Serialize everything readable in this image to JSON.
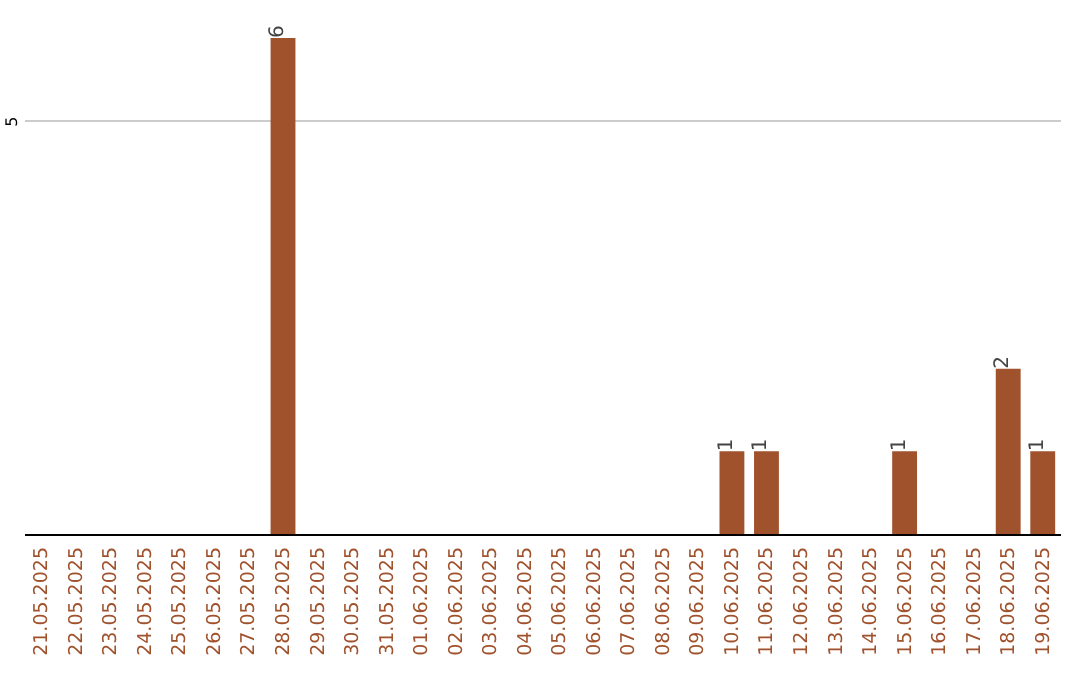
{
  "chart_data": {
    "type": "bar",
    "categories": [
      "21.05.2025",
      "22.05.2025",
      "23.05.2025",
      "24.05.2025",
      "25.05.2025",
      "26.05.2025",
      "27.05.2025",
      "28.05.2025",
      "29.05.2025",
      "30.05.2025",
      "31.05.2025",
      "01.06.2025",
      "02.06.2025",
      "03.06.2025",
      "04.06.2025",
      "05.06.2025",
      "06.06.2025",
      "07.06.2025",
      "08.06.2025",
      "09.06.2025",
      "10.06.2025",
      "11.06.2025",
      "12.06.2025",
      "13.06.2025",
      "14.06.2025",
      "15.06.2025",
      "16.06.2025",
      "17.06.2025",
      "18.06.2025",
      "19.06.2025"
    ],
    "values": [
      0,
      0,
      0,
      0,
      0,
      0,
      0,
      6,
      0,
      0,
      0,
      0,
      0,
      0,
      0,
      0,
      0,
      0,
      0,
      0,
      1,
      1,
      0,
      0,
      0,
      1,
      0,
      0,
      2,
      1
    ],
    "value_labels": [
      null,
      null,
      null,
      null,
      null,
      null,
      null,
      "6",
      null,
      null,
      null,
      null,
      null,
      null,
      null,
      null,
      null,
      null,
      null,
      null,
      "1",
      "1",
      null,
      null,
      null,
      "1",
      null,
      null,
      "2",
      "1"
    ],
    "color": "#a0522d",
    "ylim": [
      0,
      6
    ],
    "yticks": [
      5
    ],
    "grid": "y"
  }
}
